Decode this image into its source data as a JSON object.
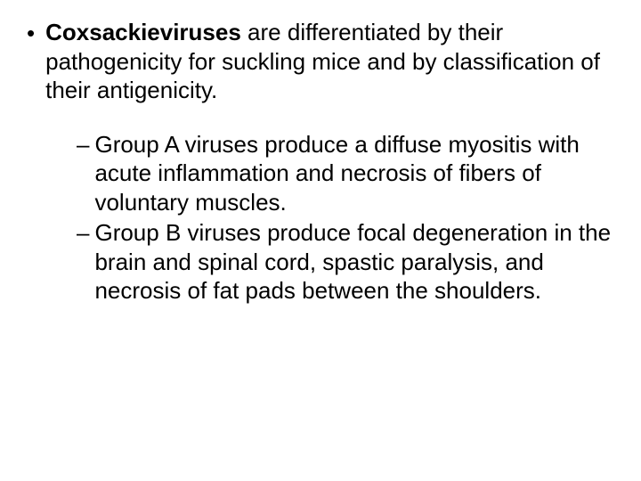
{
  "main": {
    "bold_term": "Coxsackieviruses",
    "text_rest": " are differentiated by their pathogenicity for suckling mice and by classification of their antigenicity."
  },
  "sub_items": [
    {
      "label": "Group A viruses",
      "text": " produce a diffuse myositis with acute inflammation and necrosis of fibers of voluntary muscles."
    },
    {
      "label": "Group B viruses",
      "text": " produce focal degeneration in the brain and spinal cord, spastic paralysis, and necrosis of fat pads between the shoulders."
    }
  ],
  "styling": {
    "background_color": "#ffffff",
    "text_color": "#000000",
    "main_fontsize": 26,
    "sub_fontsize": 26,
    "font_family": "Arial"
  }
}
